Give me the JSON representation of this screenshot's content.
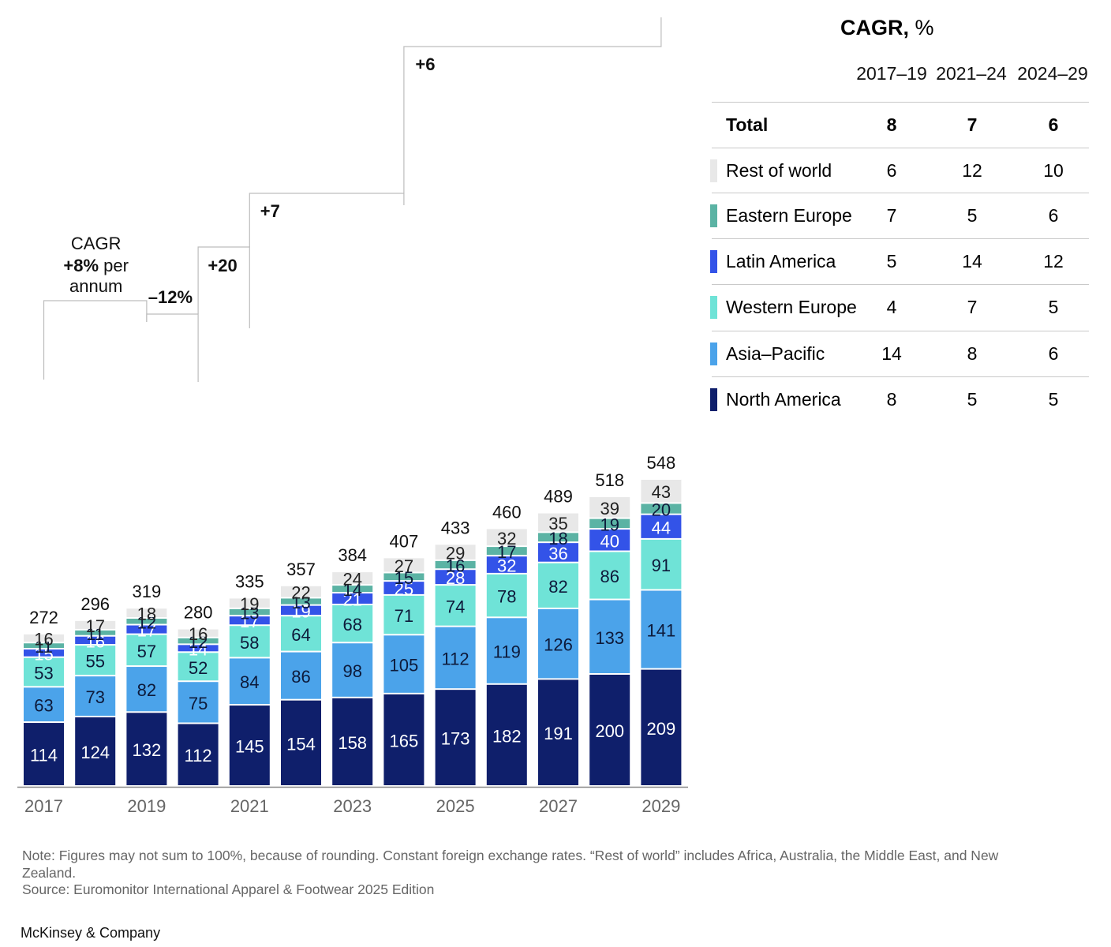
{
  "chart_data": {
    "type": "bar",
    "stacked": true,
    "categories": [
      "2017",
      "2018",
      "2019",
      "2020",
      "2021",
      "2022",
      "2023",
      "2024",
      "2025",
      "2026",
      "2027",
      "2028",
      "2029"
    ],
    "x_tick_labels": [
      "2017",
      "",
      "2019",
      "",
      "2021",
      "",
      "2023",
      "",
      "2025",
      "",
      "2027",
      "",
      "2029"
    ],
    "series": [
      {
        "name": "North America",
        "color": "#0f1f6b",
        "label_color": "#ffffff",
        "values": [
          114,
          124,
          132,
          112,
          145,
          154,
          158,
          165,
          173,
          182,
          191,
          200,
          209
        ]
      },
      {
        "name": "Asia–Pacific",
        "color": "#4ba3ea",
        "label_color": "#0d1a3a",
        "values": [
          63,
          73,
          82,
          75,
          84,
          86,
          98,
          105,
          112,
          119,
          126,
          133,
          141
        ]
      },
      {
        "name": "Western Europe",
        "color": "#6fe3d7",
        "label_color": "#0d1a3a",
        "values": [
          53,
          55,
          57,
          52,
          58,
          64,
          68,
          71,
          74,
          78,
          82,
          86,
          91
        ]
      },
      {
        "name": "Latin America",
        "color": "#3353e8",
        "label_color": "#ffffff",
        "values": [
          15,
          16,
          17,
          14,
          17,
          19,
          21,
          25,
          28,
          32,
          36,
          40,
          44
        ]
      },
      {
        "name": "Eastern Europe",
        "color": "#5bb3a4",
        "label_color": "#0d1a3a",
        "values": [
          11,
          11,
          12,
          12,
          13,
          13,
          14,
          15,
          16,
          17,
          18,
          19,
          20
        ]
      },
      {
        "name": "Rest of world",
        "color": "#e8e8e8",
        "label_color": "#222222",
        "values": [
          16,
          17,
          18,
          16,
          19,
          22,
          24,
          27,
          29,
          32,
          35,
          39,
          43
        ]
      }
    ],
    "totals": [
      272,
      296,
      319,
      280,
      335,
      357,
      384,
      407,
      433,
      460,
      489,
      518,
      548
    ],
    "ylim": [
      0,
      560
    ],
    "title": "",
    "xlabel": "",
    "ylabel": "",
    "annotations": [
      {
        "lines": [
          "CAGR",
          "+8% per",
          "annum"
        ],
        "from": "2017",
        "to": "2019"
      },
      {
        "text": "–12%",
        "from": "2019",
        "to": "2020"
      },
      {
        "text": "+20",
        "from": "2020",
        "to": "2021"
      },
      {
        "text": "+7",
        "from": "2021",
        "to": "2024"
      },
      {
        "text": "+6",
        "from": "2024",
        "to": "2029"
      }
    ]
  },
  "cagr_table": {
    "title_bold": "CAGR,",
    "title_rest": " %",
    "periods": [
      "2017–19",
      "2021–24",
      "2024–29"
    ],
    "rows": [
      {
        "name": "Total",
        "values": [
          "8",
          "7",
          "6"
        ],
        "color": ""
      },
      {
        "name": "Rest of world",
        "values": [
          "6",
          "12",
          "10"
        ],
        "color": "#e8e8e8"
      },
      {
        "name": "Eastern Europe",
        "values": [
          "7",
          "5",
          "6"
        ],
        "color": "#5bb3a4"
      },
      {
        "name": "Latin America",
        "values": [
          "5",
          "14",
          "12"
        ],
        "color": "#3353e8"
      },
      {
        "name": "Western Europe",
        "values": [
          "4",
          "7",
          "5"
        ],
        "color": "#6fe3d7"
      },
      {
        "name": "Asia–Pacific",
        "values": [
          "14",
          "8",
          "6"
        ],
        "color": "#4ba3ea"
      },
      {
        "name": "North America",
        "values": [
          "8",
          "5",
          "5"
        ],
        "color": "#0f1f6b"
      }
    ]
  },
  "footer": {
    "note": "Note: Figures may not sum to 100%, because of rounding. Constant foreign exchange rates. “Rest of world” includes Africa, Australia, the Middle East, and New Zealand.",
    "source": "Source: Euromonitor International Apparel & Footwear 2025 Edition",
    "brand": "McKinsey & Company"
  }
}
